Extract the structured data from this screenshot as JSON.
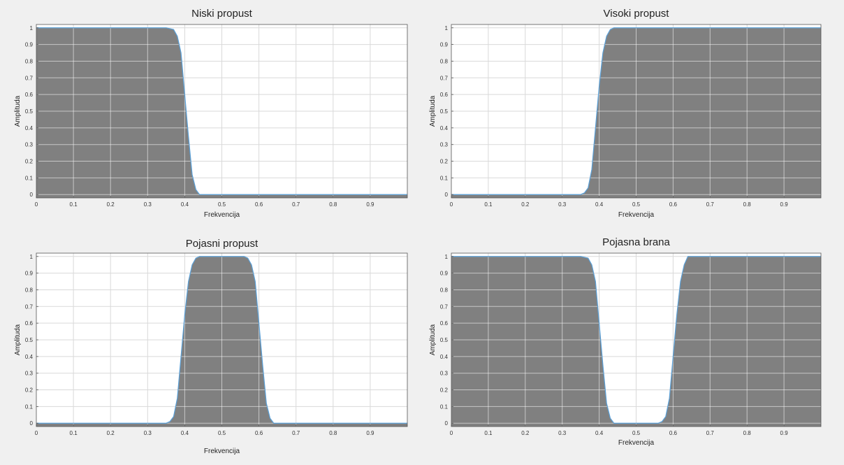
{
  "figure": {
    "colors": {
      "background": "#f0f0f0",
      "axes_background": "#ffffff",
      "fill": "#808080",
      "line": "#5aa0d8",
      "grid": "#d9d9d9"
    }
  },
  "chart_data": [
    {
      "type": "area",
      "title": "Niski propust",
      "xlabel": "Frekvencija",
      "ylabel": "Amplituda",
      "xlim": [
        0,
        1
      ],
      "ylim": [
        -0.02,
        1.02
      ],
      "xticks": [
        "0",
        "0.1",
        "0.2",
        "0.3",
        "0.4",
        "0.5",
        "0.6",
        "0.7",
        "0.8",
        "0.9"
      ],
      "yticks": [
        "0",
        "0.1",
        "0.2",
        "0.3",
        "0.4",
        "0.5",
        "0.6",
        "0.7",
        "0.8",
        "0.9",
        "1"
      ],
      "grid": true,
      "x": [
        0,
        0.05,
        0.1,
        0.2,
        0.3,
        0.35,
        0.37,
        0.38,
        0.39,
        0.4,
        0.41,
        0.42,
        0.43,
        0.44,
        0.5,
        0.6,
        0.7,
        0.8,
        0.9,
        1.0
      ],
      "y": [
        1,
        1,
        1,
        1,
        1,
        1,
        0.99,
        0.95,
        0.85,
        0.6,
        0.35,
        0.12,
        0.03,
        0,
        0,
        0,
        0,
        0,
        0,
        0
      ]
    },
    {
      "type": "area",
      "title": "Visoki propust",
      "xlabel": "Frekvencija",
      "ylabel": "Amplituda",
      "xlim": [
        0,
        1
      ],
      "ylim": [
        -0.02,
        1.02
      ],
      "xticks": [
        "0",
        "0.1",
        "0.2",
        "0.3",
        "0.4",
        "0.5",
        "0.6",
        "0.7",
        "0.8",
        "0.9"
      ],
      "yticks": [
        "0",
        "0.1",
        "0.2",
        "0.3",
        "0.4",
        "0.5",
        "0.6",
        "0.7",
        "0.8",
        "0.9",
        "1"
      ],
      "grid": true,
      "x": [
        0,
        0.1,
        0.2,
        0.3,
        0.35,
        0.36,
        0.37,
        0.38,
        0.39,
        0.4,
        0.41,
        0.42,
        0.43,
        0.44,
        0.5,
        0.6,
        0.7,
        0.8,
        0.9,
        1.0
      ],
      "y": [
        0,
        0,
        0,
        0,
        0,
        0.01,
        0.04,
        0.15,
        0.4,
        0.65,
        0.85,
        0.95,
        0.99,
        1,
        1,
        1,
        1,
        1,
        1,
        1
      ]
    },
    {
      "type": "area",
      "title": "Pojasni propust",
      "xlabel": "Frekvencija",
      "ylabel": "Amplituda",
      "xlim": [
        0,
        1
      ],
      "ylim": [
        -0.02,
        1.02
      ],
      "xticks": [
        "0",
        "0.1",
        "0.2",
        "0.3",
        "0.4",
        "0.5",
        "0.6",
        "0.7",
        "0.8",
        "0.9"
      ],
      "yticks": [
        "0",
        "0.1",
        "0.2",
        "0.3",
        "0.4",
        "0.5",
        "0.6",
        "0.7",
        "0.8",
        "0.9",
        "1"
      ],
      "grid": true,
      "x": [
        0,
        0.1,
        0.2,
        0.3,
        0.35,
        0.36,
        0.37,
        0.38,
        0.39,
        0.4,
        0.41,
        0.42,
        0.43,
        0.44,
        0.5,
        0.56,
        0.57,
        0.58,
        0.59,
        0.6,
        0.61,
        0.62,
        0.63,
        0.64,
        0.7,
        0.8,
        0.9,
        1.0
      ],
      "y": [
        0,
        0,
        0,
        0,
        0,
        0.01,
        0.04,
        0.15,
        0.4,
        0.65,
        0.85,
        0.95,
        0.99,
        1,
        1,
        1,
        0.99,
        0.95,
        0.85,
        0.6,
        0.35,
        0.12,
        0.03,
        0,
        0,
        0,
        0,
        0
      ]
    },
    {
      "type": "area",
      "title": "Pojasna brana",
      "xlabel": "Frekvencija",
      "ylabel": "Amplituda",
      "xlim": [
        0,
        1
      ],
      "ylim": [
        -0.02,
        1.02
      ],
      "xticks": [
        "0",
        "0.1",
        "0.2",
        "0.3",
        "0.4",
        "0.5",
        "0.6",
        "0.7",
        "0.8",
        "0.9"
      ],
      "yticks": [
        "0",
        "0.1",
        "0.2",
        "0.3",
        "0.4",
        "0.5",
        "0.6",
        "0.7",
        "0.8",
        "0.9",
        "1"
      ],
      "grid": true,
      "x": [
        0,
        0.1,
        0.2,
        0.3,
        0.35,
        0.37,
        0.38,
        0.39,
        0.4,
        0.41,
        0.42,
        0.43,
        0.44,
        0.5,
        0.56,
        0.57,
        0.58,
        0.59,
        0.6,
        0.61,
        0.62,
        0.63,
        0.64,
        0.7,
        0.8,
        0.9,
        1.0
      ],
      "y": [
        1,
        1,
        1,
        1,
        1,
        0.99,
        0.95,
        0.85,
        0.6,
        0.35,
        0.12,
        0.03,
        0,
        0,
        0,
        0.01,
        0.04,
        0.15,
        0.4,
        0.65,
        0.85,
        0.95,
        1,
        1,
        1,
        1,
        1
      ]
    }
  ]
}
